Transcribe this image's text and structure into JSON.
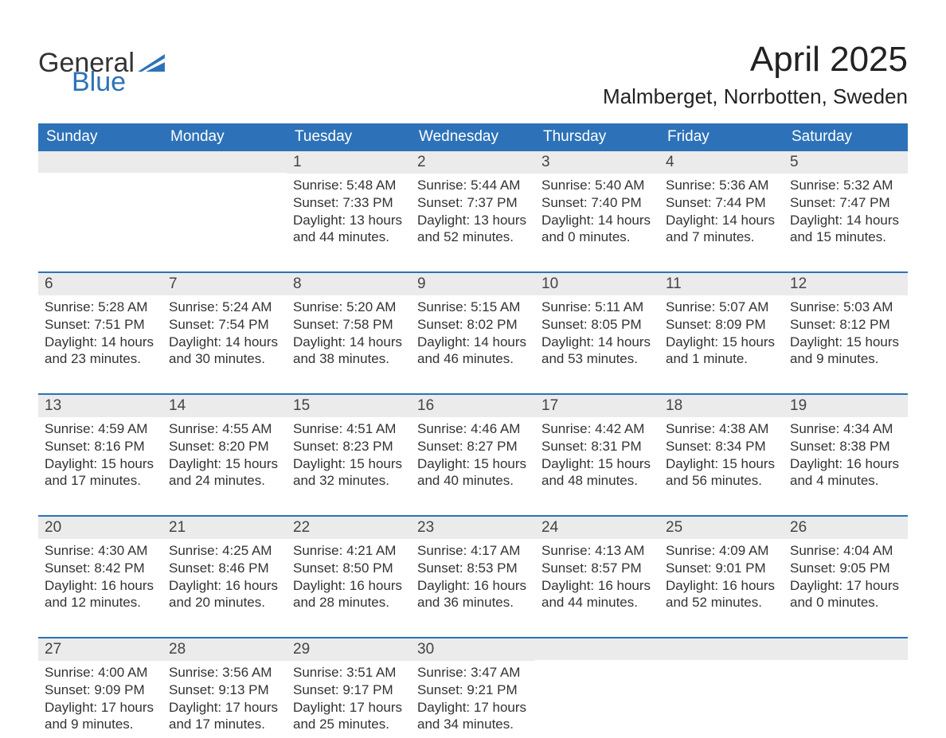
{
  "brand": {
    "word1": "General",
    "word2": "Blue",
    "word1_color": "#333333",
    "word2_color": "#2d72b8",
    "flag_color": "#2d72b8"
  },
  "title": "April 2025",
  "location": "Malmberget, Norrbotten, Sweden",
  "colors": {
    "header_bg": "#2d72b8",
    "header_text": "#ffffff",
    "daynum_bg": "#ebebeb",
    "week_border": "#2d72b8",
    "body_text": "#333333",
    "background": "#ffffff"
  },
  "fonts": {
    "title_size_pt": 33,
    "location_size_pt": 20,
    "header_size_pt": 14,
    "daynum_size_pt": 14,
    "body_size_pt": 13
  },
  "day_names": [
    "Sunday",
    "Monday",
    "Tuesday",
    "Wednesday",
    "Thursday",
    "Friday",
    "Saturday"
  ],
  "weeks": [
    [
      {
        "day": null
      },
      {
        "day": null
      },
      {
        "day": 1,
        "sunrise": "5:48 AM",
        "sunset": "7:33 PM",
        "daylight": "13 hours and 44 minutes."
      },
      {
        "day": 2,
        "sunrise": "5:44 AM",
        "sunset": "7:37 PM",
        "daylight": "13 hours and 52 minutes."
      },
      {
        "day": 3,
        "sunrise": "5:40 AM",
        "sunset": "7:40 PM",
        "daylight": "14 hours and 0 minutes."
      },
      {
        "day": 4,
        "sunrise": "5:36 AM",
        "sunset": "7:44 PM",
        "daylight": "14 hours and 7 minutes."
      },
      {
        "day": 5,
        "sunrise": "5:32 AM",
        "sunset": "7:47 PM",
        "daylight": "14 hours and 15 minutes."
      }
    ],
    [
      {
        "day": 6,
        "sunrise": "5:28 AM",
        "sunset": "7:51 PM",
        "daylight": "14 hours and 23 minutes."
      },
      {
        "day": 7,
        "sunrise": "5:24 AM",
        "sunset": "7:54 PM",
        "daylight": "14 hours and 30 minutes."
      },
      {
        "day": 8,
        "sunrise": "5:20 AM",
        "sunset": "7:58 PM",
        "daylight": "14 hours and 38 minutes."
      },
      {
        "day": 9,
        "sunrise": "5:15 AM",
        "sunset": "8:02 PM",
        "daylight": "14 hours and 46 minutes."
      },
      {
        "day": 10,
        "sunrise": "5:11 AM",
        "sunset": "8:05 PM",
        "daylight": "14 hours and 53 minutes."
      },
      {
        "day": 11,
        "sunrise": "5:07 AM",
        "sunset": "8:09 PM",
        "daylight": "15 hours and 1 minute."
      },
      {
        "day": 12,
        "sunrise": "5:03 AM",
        "sunset": "8:12 PM",
        "daylight": "15 hours and 9 minutes."
      }
    ],
    [
      {
        "day": 13,
        "sunrise": "4:59 AM",
        "sunset": "8:16 PM",
        "daylight": "15 hours and 17 minutes."
      },
      {
        "day": 14,
        "sunrise": "4:55 AM",
        "sunset": "8:20 PM",
        "daylight": "15 hours and 24 minutes."
      },
      {
        "day": 15,
        "sunrise": "4:51 AM",
        "sunset": "8:23 PM",
        "daylight": "15 hours and 32 minutes."
      },
      {
        "day": 16,
        "sunrise": "4:46 AM",
        "sunset": "8:27 PM",
        "daylight": "15 hours and 40 minutes."
      },
      {
        "day": 17,
        "sunrise": "4:42 AM",
        "sunset": "8:31 PM",
        "daylight": "15 hours and 48 minutes."
      },
      {
        "day": 18,
        "sunrise": "4:38 AM",
        "sunset": "8:34 PM",
        "daylight": "15 hours and 56 minutes."
      },
      {
        "day": 19,
        "sunrise": "4:34 AM",
        "sunset": "8:38 PM",
        "daylight": "16 hours and 4 minutes."
      }
    ],
    [
      {
        "day": 20,
        "sunrise": "4:30 AM",
        "sunset": "8:42 PM",
        "daylight": "16 hours and 12 minutes."
      },
      {
        "day": 21,
        "sunrise": "4:25 AM",
        "sunset": "8:46 PM",
        "daylight": "16 hours and 20 minutes."
      },
      {
        "day": 22,
        "sunrise": "4:21 AM",
        "sunset": "8:50 PM",
        "daylight": "16 hours and 28 minutes."
      },
      {
        "day": 23,
        "sunrise": "4:17 AM",
        "sunset": "8:53 PM",
        "daylight": "16 hours and 36 minutes."
      },
      {
        "day": 24,
        "sunrise": "4:13 AM",
        "sunset": "8:57 PM",
        "daylight": "16 hours and 44 minutes."
      },
      {
        "day": 25,
        "sunrise": "4:09 AM",
        "sunset": "9:01 PM",
        "daylight": "16 hours and 52 minutes."
      },
      {
        "day": 26,
        "sunrise": "4:04 AM",
        "sunset": "9:05 PM",
        "daylight": "17 hours and 0 minutes."
      }
    ],
    [
      {
        "day": 27,
        "sunrise": "4:00 AM",
        "sunset": "9:09 PM",
        "daylight": "17 hours and 9 minutes."
      },
      {
        "day": 28,
        "sunrise": "3:56 AM",
        "sunset": "9:13 PM",
        "daylight": "17 hours and 17 minutes."
      },
      {
        "day": 29,
        "sunrise": "3:51 AM",
        "sunset": "9:17 PM",
        "daylight": "17 hours and 25 minutes."
      },
      {
        "day": 30,
        "sunrise": "3:47 AM",
        "sunset": "9:21 PM",
        "daylight": "17 hours and 34 minutes."
      },
      {
        "day": null
      },
      {
        "day": null
      },
      {
        "day": null
      }
    ]
  ],
  "labels": {
    "sunrise_prefix": "Sunrise: ",
    "sunset_prefix": "Sunset: ",
    "daylight_prefix": "Daylight: "
  }
}
